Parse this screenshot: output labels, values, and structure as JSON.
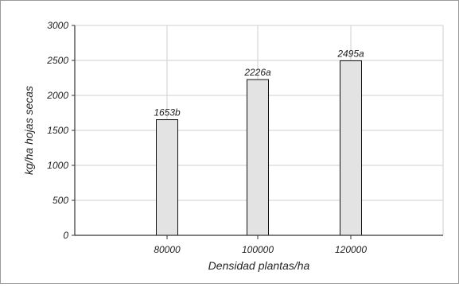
{
  "chart_data": {
    "type": "bar",
    "categories": [
      "80000",
      "100000",
      "120000"
    ],
    "values": [
      1653,
      2226,
      2495
    ],
    "data_labels": [
      "1653b",
      "2226a",
      "2495a"
    ],
    "xlabel": "Densidad plantas/ha",
    "ylabel": "kg/ha hojas secas",
    "ylim": [
      0,
      3000
    ],
    "yticks": [
      "0",
      "500",
      "1000",
      "1500",
      "2000",
      "2500",
      "3000"
    ],
    "grid": true,
    "legend": "none"
  }
}
